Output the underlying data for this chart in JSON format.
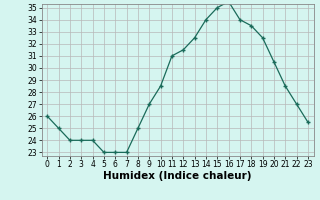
{
  "x": [
    0,
    1,
    2,
    3,
    4,
    5,
    6,
    7,
    8,
    9,
    10,
    11,
    12,
    13,
    14,
    15,
    16,
    17,
    18,
    19,
    20,
    21,
    22,
    23
  ],
  "y": [
    26,
    25,
    24,
    24,
    24,
    23,
    23,
    23,
    25,
    27,
    28.5,
    31,
    31.5,
    32.5,
    34,
    35,
    35.5,
    34,
    33.5,
    32.5,
    30.5,
    28.5,
    27,
    25.5
  ],
  "title": "",
  "xlabel": "Humidex (Indice chaleur)",
  "ylabel": "",
  "ylim": [
    23,
    35
  ],
  "xlim": [
    -0.5,
    23.5
  ],
  "yticks": [
    23,
    24,
    25,
    26,
    27,
    28,
    29,
    30,
    31,
    32,
    33,
    34,
    35
  ],
  "xticks": [
    0,
    1,
    2,
    3,
    4,
    5,
    6,
    7,
    8,
    9,
    10,
    11,
    12,
    13,
    14,
    15,
    16,
    17,
    18,
    19,
    20,
    21,
    22,
    23
  ],
  "line_color": "#1a6b5a",
  "marker": "+",
  "bg_color": "#d5f5f0",
  "grid_color": "#b8b8b8",
  "tick_fontsize": 5.5,
  "xlabel_fontsize": 7.5
}
